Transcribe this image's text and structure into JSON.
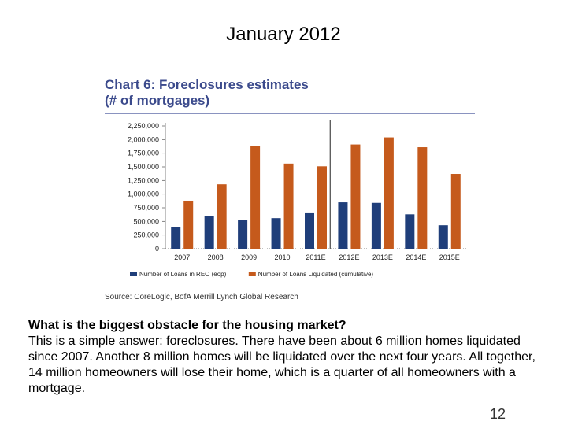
{
  "slide": {
    "title": "January 2012",
    "page_number": "12",
    "question": "What is the biggest obstacle for the housing market?",
    "answer": "This is a simple answer: foreclosures. There have been about 6 million homes liquidated since 2007.  Another 8 million homes will be liquidated over the next four years.  All together, 14 million homeowners will lose their home, which is a quarter of all homeowners with a mortgage."
  },
  "chart_data": {
    "type": "bar",
    "title": "Chart 6: Foreclosures estimates",
    "subtitle": "(# of mortgages)",
    "source": "Source: CoreLogic, BofA Merrill Lynch Global Research",
    "categories": [
      "2007",
      "2008",
      "2009",
      "2010",
      "2011E",
      "2012E",
      "2013E",
      "2014E",
      "2015E"
    ],
    "series": [
      {
        "name": "Number of Loans in REO (eop)",
        "color": "#1f3e7a",
        "values": [
          390000,
          600000,
          520000,
          560000,
          650000,
          850000,
          840000,
          630000,
          430000
        ]
      },
      {
        "name": "Number of Loans Liquidated (cumulative)",
        "color": "#c55a1c",
        "values": [
          880000,
          1180000,
          1880000,
          1560000,
          1510000,
          1910000,
          2040000,
          1860000,
          1370000
        ]
      }
    ],
    "ylim": [
      0,
      2250000
    ],
    "yticks": [
      "0",
      "250,000",
      "500,000",
      "750,000",
      "1,000,000",
      "1,250,000",
      "1,500,000",
      "1,750,000",
      "2,000,000",
      "2,250,000"
    ],
    "divider_after_category": "2011E",
    "legend_position": "bottom",
    "grid": false
  }
}
